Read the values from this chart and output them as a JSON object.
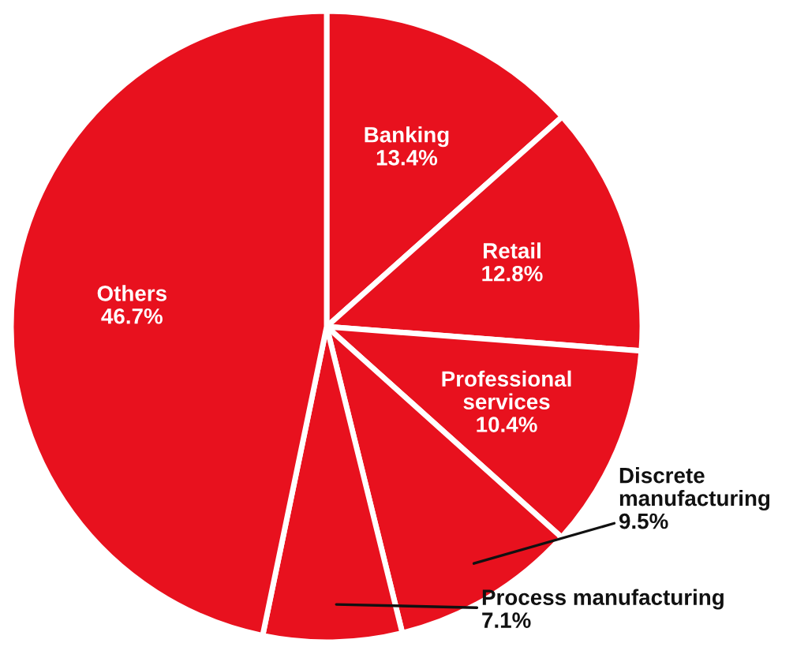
{
  "chart_data": {
    "type": "pie",
    "categories": [
      "Banking",
      "Retail",
      "Professional services",
      "Discrete manufacturing",
      "Process manufacturing",
      "Others"
    ],
    "values": [
      13.4,
      12.8,
      10.4,
      9.5,
      7.1,
      46.7
    ],
    "colors": [
      "#e8111e",
      "#e8111e",
      "#e8111e",
      "#e8111e",
      "#e8111e",
      "#e8111e"
    ],
    "value_labels": [
      "13.4%",
      "12.8%",
      "10.4%",
      "9.5%",
      "7.1%",
      "46.7%"
    ]
  }
}
